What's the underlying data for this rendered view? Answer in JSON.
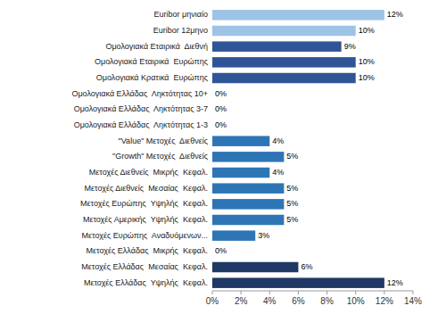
{
  "chart_data": {
    "type": "bar",
    "orientation": "horizontal",
    "categories": [
      "Euribor μηνιαίο",
      "Euribor 12μηνο",
      "Ομολογιακά Εταιρικά  Διεθνή",
      "Ομολογιακά Εταιρικά  Ευρώπης",
      "Ομολογιακά Κρατικά  Ευρώπης",
      "Ομολογιακά Ελλάδας  Ληκτότητας 10+",
      "Ομολογιακά Ελλάδας  Ληκτότητας 3-7",
      "Ομολογιακά Ελλάδας  Ληκτότητας 1-3",
      "\"Value\" Μετοχές  Διεθνείς",
      "\"Growth\" Μετοχές  Διεθνείς",
      "Μετοχές Διεθνείς  Μικρής  Κεφαλ.",
      "Μετοχές Διεθνείς  Μεσαίας  Κεφαλ.",
      "Μετοχές Ευρώπης  Υψηλής  Κεφαλ.",
      "Μετοχές Αμερικής  Υψηλής  Κεφαλ.",
      "Μετοχές Ευρώπης  Αναδυόμενων...",
      "Μετοχές Ελλάδας  Μικρής  Κεφαλ.",
      "Μετοχές Ελλάδας  Μεσαίας  Κεφαλ.",
      "Μετοχές Ελλάδας  Υψηλής  Κεφαλ."
    ],
    "values": [
      12,
      10,
      9,
      10,
      10,
      0,
      0,
      0,
      4,
      5,
      4,
      5,
      5,
      5,
      3,
      0,
      6,
      12
    ],
    "value_labels": [
      "12%",
      "10%",
      "9%",
      "10%",
      "10%",
      "0%",
      "0%",
      "0%",
      "4%",
      "5%",
      "4%",
      "5%",
      "5%",
      "5%",
      "3%",
      "0%",
      "6%",
      "12%"
    ],
    "data_labels": true,
    "colors": [
      "#9DC3E6",
      "#9DC3E6",
      "#2F5597",
      "#2F5597",
      "#2F5597",
      "#2F5597",
      "#2F5597",
      "#2F5597",
      "#2E75B6",
      "#2E75B6",
      "#2E75B6",
      "#2E75B6",
      "#2E75B6",
      "#2E75B6",
      "#2E75B6",
      "#1F3864",
      "#1F3864",
      "#1F3864"
    ],
    "xlim": [
      0,
      14
    ],
    "xticks": [
      {
        "value": 0,
        "label": "0%"
      },
      {
        "value": 2,
        "label": "2%"
      },
      {
        "value": 4,
        "label": "4%"
      },
      {
        "value": 6,
        "label": "6%"
      },
      {
        "value": 8,
        "label": "8%"
      },
      {
        "value": 10,
        "label": "10%"
      },
      {
        "value": 12,
        "label": "12%"
      },
      {
        "value": 14,
        "label": "14%"
      }
    ],
    "grid": false
  }
}
